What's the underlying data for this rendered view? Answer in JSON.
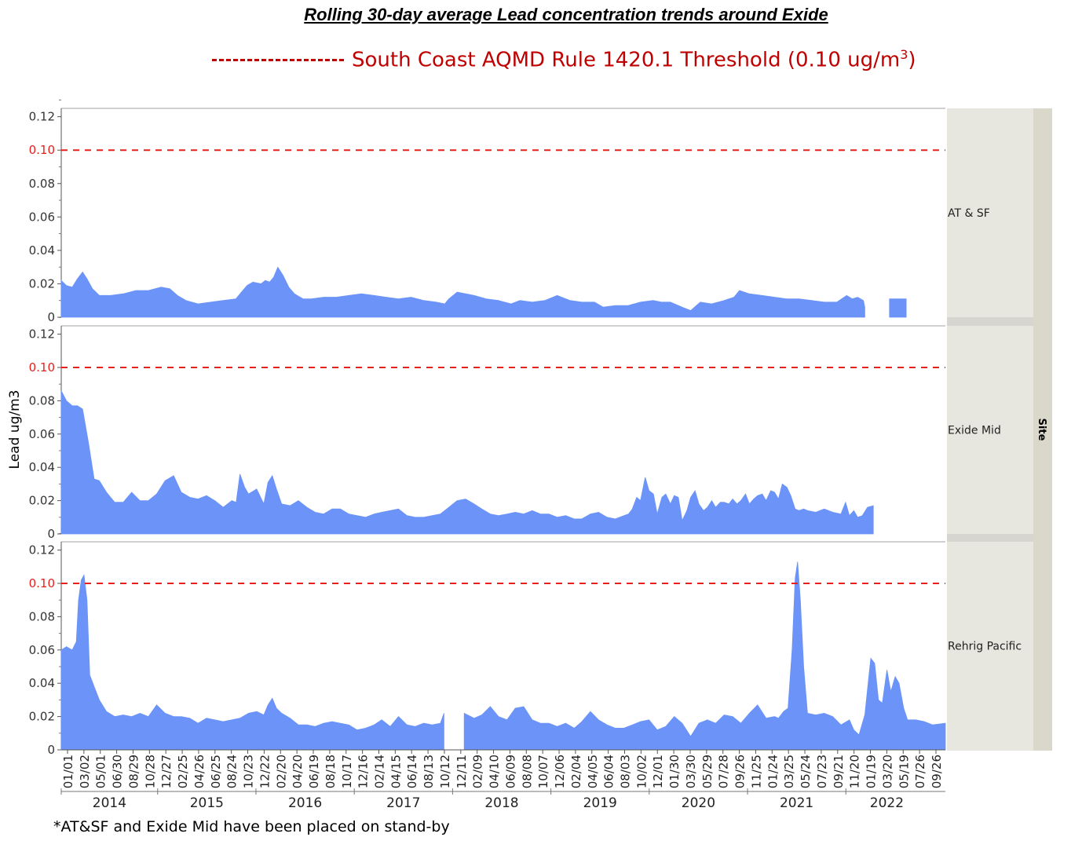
{
  "title": "Rolling 30-day average Lead concentration trends around Exide",
  "legend": {
    "threshold_label_main": "South Coast AQMD Rule 1420.1 Threshold (0.10 ug/m",
    "threshold_label_sup": "3",
    "threshold_label_end": ")",
    "threshold_color": "#c00000"
  },
  "footnote": "*AT&SF and Exide Mid have been placed on stand-by",
  "colors": {
    "area": "#6b93f8",
    "threshold": "#e8201c",
    "panel_bg": "#e7e6df",
    "site_bar": "#d9d8cb"
  },
  "chart_data": {
    "type": "area",
    "ylabel": "Lead ug/m3",
    "facet_label": "Site",
    "ylim": [
      0,
      0.125
    ],
    "yticks": [
      "0",
      "0.02",
      "0.04",
      "0.06",
      "0.08",
      "0.10",
      "0.12"
    ],
    "threshold": 0.1,
    "xlim": [
      "2014-01-01",
      "2022-10-31"
    ],
    "x_tick_labels": [
      "01/01",
      "03/02",
      "05/01",
      "06/30",
      "08/29",
      "10/28",
      "12/27",
      "02/25",
      "04/26",
      "06/25",
      "08/24",
      "10/23",
      "12/22",
      "02/20",
      "04/20",
      "06/19",
      "08/18",
      "10/17",
      "12/16",
      "02/14",
      "04/15",
      "06/14",
      "08/13",
      "10/12",
      "12/11",
      "02/09",
      "04/10",
      "06/09",
      "08/08",
      "10/07",
      "12/06",
      "02/04",
      "04/05",
      "06/04",
      "08/03",
      "10/02",
      "12/01",
      "01/30",
      "03/30",
      "05/29",
      "07/28",
      "09/26",
      "11/25",
      "01/24",
      "03/25",
      "05/24",
      "07/23",
      "09/21",
      "11/20",
      "01/19",
      "03/20",
      "05/19",
      "07/26",
      "09/26"
    ],
    "years": [
      "2014",
      "2015",
      "2016",
      "2017",
      "2018",
      "2019",
      "2020",
      "2021",
      "2022"
    ],
    "series": [
      {
        "name": "AT & SF",
        "segments": [
          {
            "x": [
              "2014-01-01",
              "2014-01-20",
              "2014-02-10",
              "2014-03-01",
              "2014-03-20",
              "2014-04-05",
              "2014-04-25",
              "2014-05-20",
              "2014-06-30",
              "2014-08-15",
              "2014-09-30",
              "2014-11-15",
              "2014-12-31",
              "2015-02-01",
              "2015-03-01",
              "2015-04-01",
              "2015-05-15",
              "2015-06-30",
              "2015-08-15",
              "2015-09-30",
              "2015-10-20",
              "2015-11-10",
              "2015-12-01",
              "2015-12-31",
              "2016-01-15",
              "2016-01-31",
              "2016-02-15",
              "2016-03-01",
              "2016-03-20",
              "2016-04-10",
              "2016-05-01",
              "2016-06-01",
              "2016-07-01",
              "2016-08-15",
              "2016-09-30",
              "2016-11-15",
              "2016-12-31",
              "2017-02-15",
              "2017-03-31",
              "2017-05-15",
              "2017-06-30",
              "2017-08-15",
              "2017-09-30",
              "2017-10-31",
              "2017-11-15",
              "2017-12-15",
              "2018-01-15",
              "2018-02-15",
              "2018-03-31",
              "2018-05-15",
              "2018-06-30",
              "2018-08-01",
              "2018-09-15",
              "2018-10-31",
              "2018-12-15",
              "2019-01-31",
              "2019-03-15",
              "2019-04-30",
              "2019-06-01",
              "2019-07-15",
              "2019-08-31",
              "2019-10-15",
              "2019-11-30",
              "2019-12-31",
              "2020-02-01",
              "2020-03-15",
              "2020-04-15",
              "2020-05-20",
              "2020-06-30",
              "2020-08-15",
              "2020-09-20",
              "2020-10-10",
              "2020-11-15",
              "2020-12-31",
              "2021-02-15",
              "2021-03-31",
              "2021-05-15",
              "2021-06-30",
              "2021-08-15",
              "2021-09-30",
              "2021-11-05",
              "2021-11-25",
              "2021-12-15",
              "2022-01-05",
              "2022-01-10"
            ],
            "y": [
              0.022,
              0.019,
              0.018,
              0.023,
              0.027,
              0.023,
              0.017,
              0.013,
              0.013,
              0.014,
              0.016,
              0.016,
              0.018,
              0.017,
              0.013,
              0.01,
              0.008,
              0.009,
              0.01,
              0.011,
              0.015,
              0.019,
              0.021,
              0.02,
              0.022,
              0.021,
              0.024,
              0.03,
              0.025,
              0.018,
              0.014,
              0.011,
              0.011,
              0.012,
              0.012,
              0.013,
              0.014,
              0.013,
              0.012,
              0.011,
              0.012,
              0.01,
              0.009,
              0.008,
              0.011,
              0.015,
              0.014,
              0.013,
              0.011,
              0.01,
              0.008,
              0.01,
              0.009,
              0.01,
              0.013,
              0.01,
              0.009,
              0.009,
              0.006,
              0.007,
              0.007,
              0.009,
              0.01,
              0.009,
              0.009,
              0.006,
              0.004,
              0.009,
              0.008,
              0.01,
              0.012,
              0.016,
              0.014,
              0.013,
              0.012,
              0.011,
              0.011,
              0.01,
              0.009,
              0.009,
              0.013,
              0.011,
              0.012,
              0.01,
              0.006
            ]
          },
          {
            "x": [
              "2022-04-10",
              "2022-06-10"
            ],
            "y": [
              0.011,
              0.011
            ]
          }
        ]
      },
      {
        "name": "Exide Mid",
        "segments": [
          {
            "x": [
              "2014-01-01",
              "2014-01-20",
              "2014-02-10",
              "2014-03-01",
              "2014-03-20",
              "2014-04-10",
              "2014-05-01",
              "2014-05-20",
              "2014-06-15",
              "2014-07-15",
              "2014-08-15",
              "2014-09-15",
              "2014-10-15",
              "2014-11-15",
              "2014-12-15",
              "2015-01-15",
              "2015-02-15",
              "2015-03-15",
              "2015-04-15",
              "2015-05-15",
              "2015-06-15",
              "2015-07-15",
              "2015-08-15",
              "2015-09-15",
              "2015-10-01",
              "2015-10-15",
              "2015-11-01",
              "2015-11-15",
              "2015-12-15",
              "2016-01-10",
              "2016-01-25",
              "2016-02-10",
              "2016-02-25",
              "2016-03-15",
              "2016-04-15",
              "2016-05-15",
              "2016-06-15",
              "2016-07-15",
              "2016-08-15",
              "2016-09-15",
              "2016-10-15",
              "2016-11-15",
              "2016-12-15",
              "2017-01-15",
              "2017-02-15",
              "2017-03-15",
              "2017-04-15",
              "2017-05-15",
              "2017-06-15",
              "2017-07-15",
              "2017-08-15",
              "2017-09-15",
              "2017-10-15",
              "2017-11-15",
              "2017-12-15",
              "2018-01-15",
              "2018-02-15",
              "2018-03-15",
              "2018-04-15",
              "2018-05-15",
              "2018-06-15",
              "2018-07-15",
              "2018-08-15",
              "2018-09-15",
              "2018-10-15",
              "2018-11-15",
              "2018-12-15",
              "2019-01-15",
              "2019-02-15",
              "2019-03-15",
              "2019-04-15",
              "2019-05-15",
              "2019-06-15",
              "2019-07-15",
              "2019-08-15",
              "2019-09-01",
              "2019-09-15",
              "2019-10-01",
              "2019-10-15",
              "2019-11-01",
              "2019-11-15",
              "2019-12-01",
              "2019-12-15",
              "2020-01-01",
              "2020-01-15",
              "2020-02-01",
              "2020-02-15",
              "2020-03-01",
              "2020-03-15",
              "2020-04-01",
              "2020-04-15",
              "2020-05-01",
              "2020-05-15",
              "2020-06-01",
              "2020-06-15",
              "2020-07-01",
              "2020-07-15",
              "2020-08-01",
              "2020-08-15",
              "2020-09-01",
              "2020-09-15",
              "2020-10-01",
              "2020-10-15",
              "2020-11-01",
              "2020-11-15",
              "2020-12-01",
              "2020-12-15",
              "2021-01-01",
              "2021-01-15",
              "2021-02-01",
              "2021-02-15",
              "2021-03-01",
              "2021-03-15",
              "2021-04-01",
              "2021-04-15",
              "2021-05-01",
              "2021-05-15",
              "2021-06-01",
              "2021-06-15",
              "2021-07-15",
              "2021-08-15",
              "2021-09-15",
              "2021-10-15",
              "2021-11-01",
              "2021-11-15",
              "2021-12-01",
              "2021-12-15",
              "2022-01-01",
              "2022-01-20",
              "2022-02-10"
            ],
            "y": [
              0.086,
              0.08,
              0.077,
              0.077,
              0.075,
              0.055,
              0.033,
              0.032,
              0.025,
              0.019,
              0.019,
              0.025,
              0.02,
              0.02,
              0.024,
              0.032,
              0.035,
              0.025,
              0.022,
              0.021,
              0.023,
              0.02,
              0.016,
              0.02,
              0.019,
              0.036,
              0.028,
              0.024,
              0.027,
              0.018,
              0.031,
              0.035,
              0.027,
              0.018,
              0.017,
              0.02,
              0.016,
              0.013,
              0.012,
              0.015,
              0.015,
              0.012,
              0.011,
              0.01,
              0.012,
              0.013,
              0.014,
              0.015,
              0.011,
              0.01,
              0.01,
              0.011,
              0.012,
              0.016,
              0.02,
              0.021,
              0.018,
              0.015,
              0.012,
              0.011,
              0.012,
              0.013,
              0.012,
              0.014,
              0.012,
              0.012,
              0.01,
              0.011,
              0.009,
              0.009,
              0.012,
              0.013,
              0.01,
              0.009,
              0.011,
              0.012,
              0.015,
              0.022,
              0.02,
              0.034,
              0.026,
              0.024,
              0.012,
              0.022,
              0.024,
              0.018,
              0.023,
              0.022,
              0.008,
              0.014,
              0.022,
              0.026,
              0.018,
              0.014,
              0.016,
              0.02,
              0.016,
              0.019,
              0.019,
              0.018,
              0.021,
              0.018,
              0.02,
              0.024,
              0.018,
              0.021,
              0.023,
              0.024,
              0.02,
              0.026,
              0.025,
              0.021,
              0.03,
              0.028,
              0.023,
              0.015,
              0.014,
              0.015,
              0.014,
              0.013,
              0.015,
              0.013,
              0.012,
              0.019,
              0.011,
              0.014,
              0.01,
              0.011,
              0.016,
              0.017
            ]
          }
        ]
      },
      {
        "name": "Rehrig Pacific",
        "segments": [
          {
            "x": [
              "2014-01-01",
              "2014-01-20",
              "2014-02-10",
              "2014-02-25",
              "2014-03-05",
              "2014-03-15",
              "2014-03-25",
              "2014-04-05",
              "2014-04-15",
              "2014-05-01",
              "2014-05-20",
              "2014-06-15",
              "2014-07-15",
              "2014-08-15",
              "2014-09-15",
              "2014-10-15",
              "2014-11-15",
              "2014-12-15",
              "2015-01-15",
              "2015-02-15",
              "2015-03-15",
              "2015-04-15",
              "2015-05-15",
              "2015-06-15",
              "2015-07-15",
              "2015-08-15",
              "2015-09-15",
              "2015-10-15",
              "2015-11-15",
              "2015-12-15",
              "2016-01-10",
              "2016-01-25",
              "2016-02-10",
              "2016-02-25",
              "2016-03-15",
              "2016-04-15",
              "2016-05-15",
              "2016-06-15",
              "2016-07-15",
              "2016-08-15",
              "2016-09-15",
              "2016-10-15",
              "2016-11-15",
              "2016-12-15",
              "2017-01-15",
              "2017-02-15",
              "2017-03-15",
              "2017-04-15",
              "2017-05-15",
              "2017-06-15",
              "2017-07-15",
              "2017-08-15",
              "2017-09-15",
              "2017-10-15",
              "2017-10-28"
            ],
            "y": [
              0.06,
              0.062,
              0.06,
              0.065,
              0.09,
              0.102,
              0.105,
              0.09,
              0.045,
              0.038,
              0.03,
              0.023,
              0.02,
              0.021,
              0.02,
              0.022,
              0.02,
              0.027,
              0.022,
              0.02,
              0.02,
              0.019,
              0.016,
              0.019,
              0.018,
              0.017,
              0.018,
              0.019,
              0.022,
              0.023,
              0.021,
              0.027,
              0.031,
              0.025,
              0.022,
              0.019,
              0.015,
              0.015,
              0.014,
              0.016,
              0.017,
              0.016,
              0.015,
              0.012,
              0.013,
              0.015,
              0.018,
              0.014,
              0.02,
              0.015,
              0.014,
              0.016,
              0.015,
              0.016,
              0.022
            ]
          },
          {
            "x": [
              "2018-01-10",
              "2018-02-15",
              "2018-03-15",
              "2018-04-15",
              "2018-05-15",
              "2018-06-15",
              "2018-07-15",
              "2018-08-15",
              "2018-09-15",
              "2018-10-15",
              "2018-11-15",
              "2018-12-15",
              "2019-01-15",
              "2019-02-15",
              "2019-03-15",
              "2019-04-15",
              "2019-05-15",
              "2019-06-15",
              "2019-07-15",
              "2019-08-15",
              "2019-09-15",
              "2019-10-15",
              "2019-11-15",
              "2019-12-15",
              "2020-01-15",
              "2020-02-15",
              "2020-03-15",
              "2020-04-15",
              "2020-05-15",
              "2020-06-15",
              "2020-07-15",
              "2020-08-15",
              "2020-09-15",
              "2020-10-15",
              "2020-11-15",
              "2020-12-15",
              "2021-01-15",
              "2021-02-15",
              "2021-03-01",
              "2021-03-20",
              "2021-04-05",
              "2021-04-20",
              "2021-05-01",
              "2021-05-10",
              "2021-05-20",
              "2021-06-01",
              "2021-06-15",
              "2021-07-15",
              "2021-08-15",
              "2021-09-15",
              "2021-10-15",
              "2021-11-15",
              "2021-12-01",
              "2021-12-20",
              "2022-01-10",
              "2022-02-01",
              "2022-02-15",
              "2022-03-01",
              "2022-03-15",
              "2022-04-01",
              "2022-04-15",
              "2022-05-01",
              "2022-05-15",
              "2022-06-01",
              "2022-06-15",
              "2022-07-15",
              "2022-08-15",
              "2022-09-15",
              "2022-10-31"
            ],
            "y": [
              0.022,
              0.019,
              0.021,
              0.026,
              0.02,
              0.018,
              0.025,
              0.026,
              0.018,
              0.016,
              0.016,
              0.014,
              0.016,
              0.013,
              0.017,
              0.023,
              0.018,
              0.015,
              0.013,
              0.013,
              0.015,
              0.017,
              0.018,
              0.012,
              0.014,
              0.02,
              0.016,
              0.008,
              0.016,
              0.018,
              0.016,
              0.021,
              0.02,
              0.016,
              0.022,
              0.027,
              0.019,
              0.02,
              0.019,
              0.023,
              0.025,
              0.06,
              0.103,
              0.113,
              0.09,
              0.05,
              0.022,
              0.021,
              0.022,
              0.02,
              0.015,
              0.018,
              0.012,
              0.009,
              0.021,
              0.055,
              0.052,
              0.03,
              0.028,
              0.048,
              0.035,
              0.044,
              0.04,
              0.025,
              0.018,
              0.018,
              0.017,
              0.015,
              0.016
            ]
          }
        ]
      }
    ]
  }
}
